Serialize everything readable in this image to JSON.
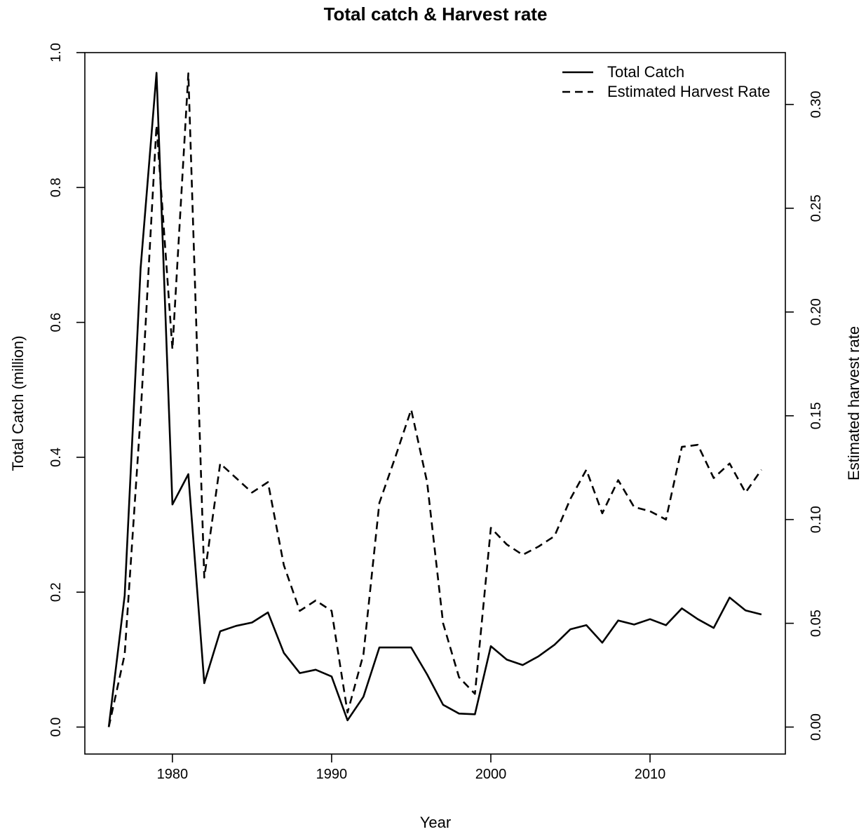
{
  "chart_data": {
    "type": "line",
    "title": "Total catch & Harvest rate",
    "xlabel": "Year",
    "ylabel": "Total Catch (million)",
    "ylabel_right": "Estimated harvest rate",
    "xlim": [
      1974.5,
      2018.5
    ],
    "ylim": [
      -0.04,
      1.0
    ],
    "ylim_right": [
      -0.013,
      0.325
    ],
    "x_ticks": [
      1980,
      1990,
      2000,
      2010
    ],
    "x_tick_labels": [
      "1980",
      "1990",
      "2000",
      "2010"
    ],
    "y_ticks": [
      0.0,
      0.2,
      0.4,
      0.6,
      0.8,
      1.0
    ],
    "y_tick_labels": [
      "0.0",
      "0.2",
      "0.4",
      "0.6",
      "0.8",
      "1.0"
    ],
    "y_right_ticks": [
      0.0,
      0.05,
      0.1,
      0.15,
      0.2,
      0.25,
      0.3
    ],
    "y_right_tick_labels": [
      "0.00",
      "0.05",
      "0.10",
      "0.15",
      "0.20",
      "0.25",
      "0.30"
    ],
    "legend_position": "top-right",
    "grid": false,
    "x": [
      1976,
      1977,
      1978,
      1979,
      1980,
      1981,
      1982,
      1983,
      1984,
      1985,
      1986,
      1987,
      1988,
      1989,
      1990,
      1991,
      1992,
      1993,
      1994,
      1995,
      1996,
      1997,
      1998,
      1999,
      2000,
      2001,
      2002,
      2003,
      2004,
      2005,
      2006,
      2007,
      2008,
      2009,
      2010,
      2011,
      2012,
      2013,
      2014,
      2015,
      2016,
      2017
    ],
    "series": [
      {
        "name": "Total Catch",
        "axis": "left",
        "style": "solid",
        "color": "#000000",
        "values": [
          0.0,
          0.195,
          0.68,
          0.97,
          0.33,
          0.375,
          0.065,
          0.142,
          0.15,
          0.155,
          0.17,
          0.11,
          0.08,
          0.085,
          0.075,
          0.01,
          0.045,
          0.118,
          0.118,
          0.118,
          0.078,
          0.033,
          0.02,
          0.019,
          0.12,
          0.1,
          0.092,
          0.105,
          0.122,
          0.145,
          0.151,
          0.125,
          0.158,
          0.152,
          0.16,
          0.151,
          0.176,
          0.16,
          0.147,
          0.192,
          0.173,
          0.167
        ]
      },
      {
        "name": "Estimated Harvest Rate",
        "axis": "right",
        "style": "dashed",
        "color": "#000000",
        "values": [
          0.0,
          0.035,
          0.15,
          0.29,
          0.182,
          0.315,
          0.072,
          0.127,
          0.12,
          0.113,
          0.118,
          0.078,
          0.056,
          0.061,
          0.056,
          0.007,
          0.035,
          0.108,
          0.13,
          0.153,
          0.118,
          0.05,
          0.024,
          0.016,
          0.096,
          0.088,
          0.083,
          0.087,
          0.092,
          0.11,
          0.124,
          0.103,
          0.119,
          0.106,
          0.104,
          0.1,
          0.135,
          0.136,
          0.12,
          0.127,
          0.113,
          0.124
        ]
      }
    ]
  }
}
